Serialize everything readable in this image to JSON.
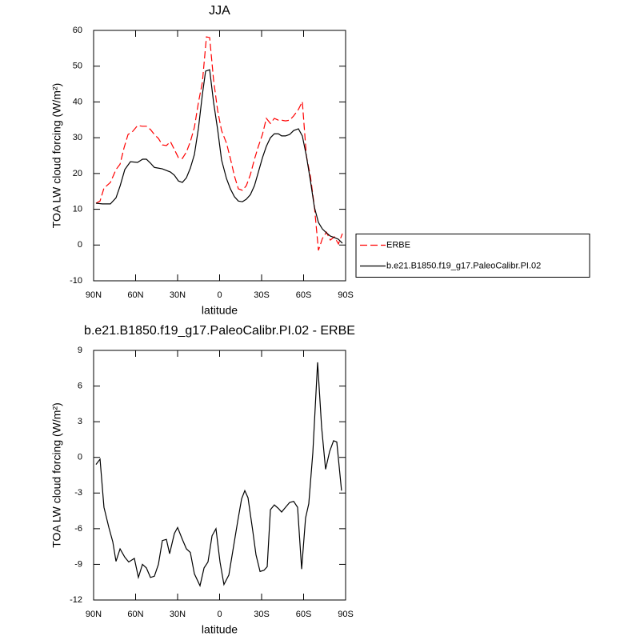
{
  "chart_data": [
    {
      "type": "line",
      "title": "JJA",
      "xlabel": "latitude",
      "ylabel": "TOA LW cloud forcing (W/m²)",
      "xlim": [
        90,
        -90
      ],
      "ylim": [
        -10,
        60
      ],
      "xticks": [
        {
          "value": 90,
          "label": "90N"
        },
        {
          "value": 60,
          "label": "60N"
        },
        {
          "value": 30,
          "label": "30N"
        },
        0,
        {
          "value": -30,
          "label": "30S"
        },
        {
          "value": -60,
          "label": "60S"
        },
        {
          "value": -90,
          "label": "90S"
        }
      ],
      "yticks": [
        -10,
        0,
        10,
        20,
        30,
        40,
        50,
        60
      ],
      "legend": "right",
      "series": [
        {
          "name": "ERBE",
          "color": "#ff0000",
          "dash": true,
          "x": [
            88.3,
            85.4,
            82.6,
            78,
            74,
            71.1,
            68.3,
            65.4,
            62,
            58.6,
            55.1,
            52.3,
            49.4,
            46.6,
            43.7,
            40.9,
            38,
            35.1,
            32.3,
            29.4,
            26.6,
            23.7,
            20.9,
            18,
            15.1,
            12.3,
            9.4,
            7.1,
            4.3,
            1.4,
            -1.4,
            -4.9,
            -7.7,
            -10.6,
            -13.4,
            -16.3,
            -19.1,
            -22,
            -24.9,
            -27.7,
            -30.6,
            -33.4,
            -36.3,
            -39.1,
            -42,
            -44.3,
            -47.1,
            -50,
            -52.9,
            -56.3,
            -59.1,
            -62,
            -64.9,
            -67.7,
            -70.6,
            -73.4,
            -76.3,
            -79.1,
            -82,
            -84.9,
            -87.7
          ],
          "values": [
            11.7,
            12.3,
            15.9,
            17.5,
            21.1,
            22.6,
            27.1,
            30.9,
            31.8,
            33.4,
            33.2,
            33.2,
            32.3,
            30.9,
            29.8,
            28,
            27.8,
            28.9,
            26.7,
            24.4,
            24.2,
            26,
            28.9,
            32.9,
            39.9,
            45.5,
            58.2,
            58,
            46.1,
            37.6,
            32,
            28.5,
            24.2,
            19.3,
            15.7,
            15.3,
            16.6,
            19.7,
            24,
            27.6,
            30.9,
            35.4,
            34,
            35.4,
            34.9,
            34.9,
            34.7,
            34.9,
            36.1,
            37.9,
            40.1,
            24.9,
            19.1,
            10.8,
            -1.5,
            1.8,
            3.6,
            1.4,
            2.3,
            0.3,
            3.2
          ]
        },
        {
          "name": "b.e21.B1850.f19_g17.PaleoCalibr.PI.02",
          "color": "#000000",
          "dash": false,
          "x": [
            88.3,
            83.7,
            78,
            74,
            71,
            67.7,
            63.7,
            58.6,
            55,
            52.3,
            49.4,
            46.6,
            40.9,
            35.1,
            32.3,
            29.4,
            26.6,
            23.7,
            20.9,
            18,
            15.1,
            12.3,
            10,
            7.1,
            4.3,
            1.4,
            -1.4,
            -4.9,
            -7.7,
            -10.6,
            -13.4,
            -16.3,
            -19.1,
            -22,
            -24.9,
            -27.7,
            -30.6,
            -33.4,
            -36.3,
            -39.1,
            -42,
            -44.3,
            -47.1,
            -50,
            -52.9,
            -56.3,
            -59.1,
            -62,
            -64.9,
            -67.7,
            -70.6,
            -73.4,
            -76.3,
            -79.1,
            -82,
            -84.9,
            -87.7
          ],
          "values": [
            11.7,
            11.5,
            11.5,
            13.2,
            16.6,
            21.1,
            23.3,
            23.1,
            24,
            24,
            22.9,
            21.7,
            21.3,
            20.4,
            19.5,
            17.9,
            17.5,
            18.8,
            21.5,
            25.3,
            32.7,
            42.1,
            48.6,
            49,
            39.9,
            32.3,
            23.8,
            18.6,
            15.7,
            13.5,
            12.3,
            12.1,
            12.8,
            14.1,
            16.6,
            20.4,
            24.4,
            27.6,
            30,
            31.1,
            31.1,
            30.5,
            30.5,
            30.9,
            32,
            32.5,
            30.5,
            24.9,
            17.9,
            10.6,
            6.3,
            4.5,
            3.4,
            2.5,
            2.1,
            1.6,
            0.5
          ]
        }
      ]
    },
    {
      "type": "line",
      "title": "b.e21.B1850.f19_g17.PaleoCalibr.PI.02 - ERBE",
      "xlabel": "latitude",
      "ylabel": "TOA LW cloud forcing (W/m²)",
      "xlim": [
        90,
        -90
      ],
      "ylim": [
        -12,
        9
      ],
      "xticks": [
        {
          "value": 90,
          "label": "90N"
        },
        {
          "value": 60,
          "label": "60N"
        },
        {
          "value": 30,
          "label": "30N"
        },
        0,
        {
          "value": -30,
          "label": "30S"
        },
        {
          "value": -60,
          "label": "60S"
        },
        {
          "value": -90,
          "label": "90S"
        }
      ],
      "yticks": [
        -12,
        -9,
        -6,
        -3,
        0,
        3,
        6,
        9
      ],
      "series": [
        {
          "name": "b.e21.B1850.f19_g17.PaleoCalibr.PI.02 - ERBE",
          "color": "#000000",
          "dash": false,
          "x": [
            88.3,
            85.4,
            82.6,
            79.1,
            76.3,
            74,
            71.1,
            67.7,
            64.9,
            60.9,
            58,
            55.1,
            52.3,
            49.4,
            46.6,
            43.7,
            40.9,
            38,
            35.7,
            32.3,
            30,
            26.6,
            23.7,
            20.9,
            18,
            14,
            11.1,
            8.3,
            5.4,
            2.6,
            -0.3,
            -3.1,
            -6.6,
            -9.4,
            -12.9,
            -15.7,
            -18,
            -20.3,
            -23.7,
            -26,
            -28.9,
            -31.7,
            -34,
            -36.3,
            -39.1,
            -42,
            -44.3,
            -47.1,
            -50,
            -52.9,
            -55.7,
            -58.6,
            -61.4,
            -63.7,
            -66.6,
            -70,
            -72.9,
            -75.7,
            -78.6,
            -81.4,
            -83.7,
            -87.1
          ],
          "values": [
            -0.6,
            -0.15,
            -4.2,
            -5.9,
            -7.1,
            -8.75,
            -7.7,
            -8.4,
            -8.8,
            -8.5,
            -10.1,
            -9,
            -9.3,
            -10.1,
            -10,
            -9,
            -7,
            -6.9,
            -8.1,
            -6.4,
            -5.9,
            -6.9,
            -7.7,
            -8,
            -9.8,
            -10.8,
            -9.3,
            -8.8,
            -6.6,
            -6,
            -8.8,
            -10.7,
            -9.9,
            -7.9,
            -5.4,
            -3.5,
            -2.8,
            -3.4,
            -6.2,
            -8.2,
            -9.6,
            -9.5,
            -9.2,
            -4.4,
            -4,
            -4.3,
            -4.6,
            -4.2,
            -3.8,
            -3.7,
            -4.2,
            -9.4,
            -5.1,
            -3.9,
            0.4,
            8,
            2.5,
            -1,
            0.5,
            1.4,
            1.3,
            -2.8
          ]
        }
      ]
    }
  ]
}
